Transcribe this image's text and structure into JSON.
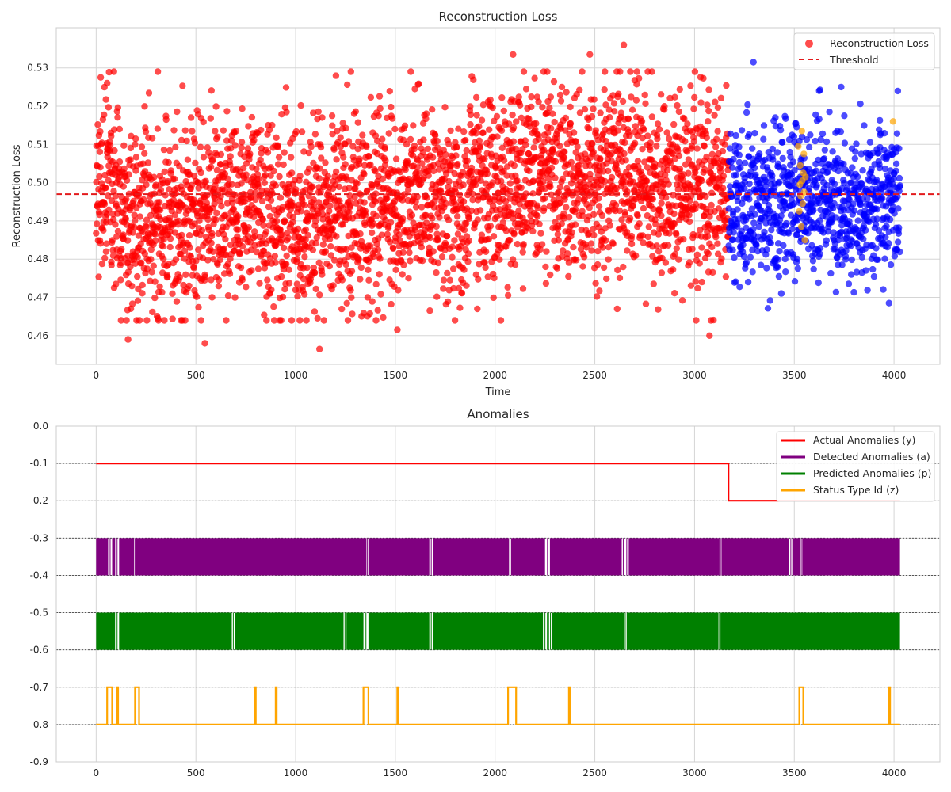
{
  "chart_data": [
    {
      "type": "scatter",
      "title": "Reconstruction Loss",
      "xlabel": "Time",
      "ylabel": "Reconstruction Loss",
      "xlim": [
        -200,
        4230
      ],
      "ylim": [
        0.4525,
        0.5405
      ],
      "xticks": [
        0,
        500,
        1000,
        1500,
        2000,
        2500,
        3000,
        3500,
        4000
      ],
      "yticks": [
        0.46,
        0.47,
        0.48,
        0.49,
        0.5,
        0.51,
        0.52,
        0.53
      ],
      "grid": true,
      "legend": {
        "position": "top-right"
      },
      "threshold": {
        "name": "Threshold",
        "value": 0.497,
        "color": "#e31a1c",
        "style": "dashed"
      },
      "series": [
        {
          "name": "Reconstruction Loss",
          "color": "#ff0000",
          "x_range": [
            0,
            3170
          ],
          "n_points": 3171,
          "mean_profile": {
            "x": [
              0,
              200,
              400,
              600,
              800,
              1000,
              1200,
              1400,
              1600,
              1800,
              2000,
              2200,
              2400,
              2600,
              2800,
              3000,
              3170
            ],
            "y": [
              0.5,
              0.491,
              0.49,
              0.494,
              0.493,
              0.491,
              0.492,
              0.494,
              0.495,
              0.494,
              0.499,
              0.501,
              0.499,
              0.502,
              0.498,
              0.497,
              0.498
            ]
          },
          "spread_sd": 0.0125,
          "notable_points": [
            {
              "x": 55,
              "y": 0.526
            },
            {
              "x": 160,
              "y": 0.459
            },
            {
              "x": 545,
              "y": 0.458
            },
            {
              "x": 1120,
              "y": 0.4565
            },
            {
              "x": 1510,
              "y": 0.4615
            },
            {
              "x": 2090,
              "y": 0.5335
            },
            {
              "x": 2475,
              "y": 0.5335
            },
            {
              "x": 2645,
              "y": 0.536
            },
            {
              "x": 3075,
              "y": 0.46
            }
          ]
        },
        {
          "name": "",
          "color": "#0000ff",
          "x_range": [
            3171,
            4030
          ],
          "n_points": 860,
          "mean_profile": {
            "x": [
              3171,
              3400,
              3600,
              3800,
              4030
            ],
            "y": [
              0.495,
              0.495,
              0.496,
              0.494,
              0.496
            ]
          },
          "spread_sd": 0.01,
          "notable_points": [
            {
              "x": 3295,
              "y": 0.5315
            },
            {
              "x": 3625,
              "y": 0.524
            },
            {
              "x": 3735,
              "y": 0.525
            },
            {
              "x": 3975,
              "y": 0.4685
            }
          ]
        },
        {
          "name": "",
          "color": "#ffa500",
          "x_values": [
            3520,
            3525,
            3528,
            3530,
            3532,
            3535,
            3538,
            3540,
            3542,
            3545,
            3548,
            3550,
            3553,
            3556,
            3995
          ],
          "y_values": [
            0.5095,
            0.4925,
            0.4995,
            0.5045,
            0.4965,
            0.4885,
            0.5135,
            0.5005,
            0.4945,
            0.5025,
            0.5075,
            0.4975,
            0.485,
            0.5015,
            0.516
          ]
        }
      ]
    },
    {
      "type": "line",
      "title": "Anomalies",
      "xlabel": "",
      "ylabel": "",
      "xlim": [
        -200,
        4230
      ],
      "ylim": [
        -0.9,
        0.0
      ],
      "xticks": [
        0,
        500,
        1000,
        1500,
        2000,
        2500,
        3000,
        3500,
        4000
      ],
      "yticks": [
        0.0,
        -0.1,
        -0.2,
        -0.3,
        -0.4,
        -0.5,
        -0.6,
        -0.7,
        -0.8,
        -0.9
      ],
      "grid": true,
      "hlines": [
        -0.1,
        -0.2,
        -0.3,
        -0.4,
        -0.5,
        -0.6,
        -0.7,
        -0.8
      ],
      "legend": {
        "position": "top-right"
      },
      "series": [
        {
          "name": "Actual Anomalies (y)",
          "color": "#ff0000",
          "kind": "step",
          "segments": [
            {
              "x0": 0,
              "x1": 3170,
              "y": -0.1
            },
            {
              "x0": 3170,
              "x1": 4030,
              "y": -0.2
            }
          ]
        },
        {
          "name": "Detected Anomalies (a)",
          "color": "#800080",
          "kind": "binary-band",
          "low": -0.4,
          "high": -0.3,
          "x_range": [
            0,
            4030
          ],
          "gaps": [
            [
              60,
              80
            ],
            [
              95,
              115
            ],
            [
              190,
              200
            ],
            [
              1355,
              1365
            ],
            [
              1670,
              1690
            ],
            [
              2070,
              2080
            ],
            [
              2250,
              2275
            ],
            [
              2635,
              2650
            ],
            [
              2650,
              2670
            ],
            [
              3125,
              3135
            ],
            [
              3475,
              3490
            ],
            [
              3530,
              3540
            ]
          ]
        },
        {
          "name": "Predicted Anomalies (p)",
          "color": "#008000",
          "kind": "binary-band",
          "low": -0.6,
          "high": -0.5,
          "x_range": [
            0,
            4030
          ],
          "gaps": [
            [
              95,
              115
            ],
            [
              680,
              695
            ],
            [
              1240,
              1255
            ],
            [
              1340,
              1365
            ],
            [
              1670,
              1690
            ],
            [
              2240,
              2260
            ],
            [
              2270,
              2285
            ],
            [
              2645,
              2660
            ],
            [
              3120,
              3130
            ]
          ]
        },
        {
          "name": "Status Type Id (z)",
          "color": "#ffa500",
          "kind": "pulse",
          "base": -0.8,
          "high": -0.7,
          "x_range": [
            0,
            4030
          ],
          "pulses": [
            [
              55,
              80
            ],
            [
              105,
              110
            ],
            [
              195,
              215
            ],
            [
              795,
              800
            ],
            [
              900,
              905
            ],
            [
              1340,
              1365
            ],
            [
              1510,
              1515
            ],
            [
              2065,
              2105
            ],
            [
              2370,
              2375
            ],
            [
              3525,
              3545
            ],
            [
              3975,
              3980
            ]
          ]
        }
      ]
    }
  ]
}
